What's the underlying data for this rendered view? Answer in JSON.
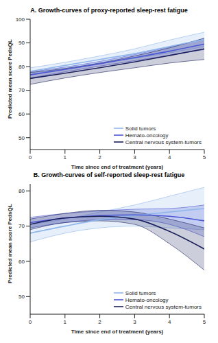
{
  "chart_data": [
    {
      "type": "line",
      "title": "A. Growth-curves of proxy-reported sleep-rest fatigue",
      "x_label": "Time since end of treatment (years)",
      "y_label": "Predicted mean score PedsQL",
      "x": [
        0,
        1,
        2,
        3,
        4,
        5
      ],
      "xlim": [
        0,
        5
      ],
      "xticks": [
        0,
        1,
        2,
        3,
        4,
        5
      ],
      "ylim": [
        45,
        100
      ],
      "yticks": [
        50,
        60,
        70,
        80,
        90,
        100
      ],
      "legend": "lower right",
      "series": [
        {
          "name": "Solid tumors",
          "color": "#8fb6ea",
          "values": [
            78,
            80.5,
            83,
            85.5,
            88.5,
            91.5
          ],
          "ci_lower": [
            76.5,
            79.2,
            81.5,
            83.5,
            85.8,
            88.5
          ],
          "ci_upper": [
            79.5,
            81.8,
            84.5,
            87.5,
            91.2,
            94.5
          ]
        },
        {
          "name": "Hemato-oncology",
          "color": "#4a56d4",
          "values": [
            76.5,
            78.8,
            81.2,
            83.8,
            86.5,
            89.5
          ],
          "ci_lower": [
            75.2,
            77.8,
            80.2,
            82.5,
            84.8,
            87.2
          ],
          "ci_upper": [
            77.8,
            79.8,
            82.2,
            85.1,
            88.2,
            91.8
          ]
        },
        {
          "name": "Central nervous system-tumors",
          "color": "#1b205c",
          "values": [
            75,
            77.2,
            79.5,
            82,
            84.7,
            87.5
          ],
          "ci_lower": [
            72.5,
            75.2,
            77.5,
            79.5,
            81.5,
            83
          ],
          "ci_upper": [
            77.5,
            79.2,
            81.5,
            84.5,
            87.9,
            92
          ]
        }
      ]
    },
    {
      "type": "line",
      "title": "B. Growth-curves of self-reported sleep-rest fatigue",
      "x_label": "Time since end of treatment (years)",
      "y_label": "Predicted mean score PedsQL",
      "x": [
        0,
        1,
        2,
        3,
        4,
        5
      ],
      "xlim": [
        0,
        5
      ],
      "xticks": [
        0,
        1,
        2,
        3,
        4,
        5
      ],
      "ylim": [
        45,
        82
      ],
      "yticks": [
        50,
        60,
        70,
        80
      ],
      "legend": "lower right",
      "series": [
        {
          "name": "Solid tumors",
          "color": "#8fb6ea",
          "values": [
            68,
            70,
            71.8,
            73,
            74,
            75
          ],
          "ci_lower": [
            65.5,
            68,
            69.5,
            70,
            69.5,
            69
          ],
          "ci_upper": [
            70.5,
            72,
            74,
            76,
            78.5,
            81
          ]
        },
        {
          "name": "Hemato-oncology",
          "color": "#4a56d4",
          "values": [
            71,
            72.3,
            73,
            73.2,
            72.8,
            71.5
          ],
          "ci_lower": [
            69.5,
            71,
            71.8,
            71.8,
            70.5,
            67
          ],
          "ci_upper": [
            72.5,
            73.6,
            74.3,
            74.8,
            75,
            76
          ]
        },
        {
          "name": "Central nervous system-tumors",
          "color": "#1b205c",
          "values": [
            70.5,
            72.3,
            72.8,
            72,
            68.5,
            63.5
          ],
          "ci_lower": [
            69,
            71,
            71.5,
            70.5,
            65,
            57.5
          ],
          "ci_upper": [
            72,
            73.6,
            74.5,
            74,
            72,
            69.5
          ]
        }
      ]
    }
  ]
}
